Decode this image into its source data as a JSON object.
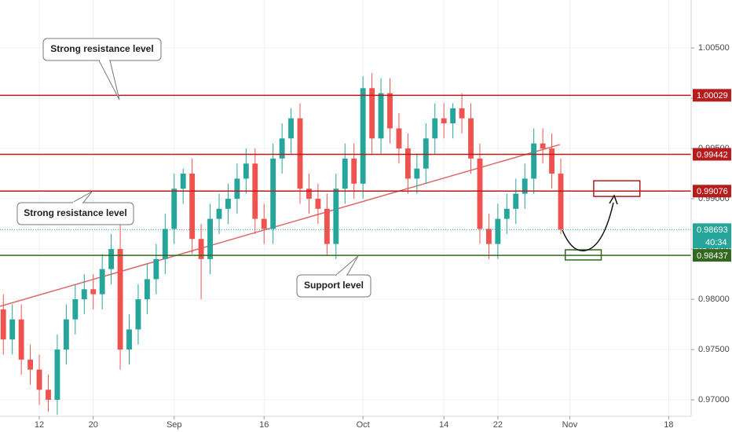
{
  "chart_data": {
    "type": "candlestick",
    "x": [
      -4,
      -3,
      -2,
      -1,
      0,
      1,
      2,
      3,
      4,
      5,
      6,
      7,
      8,
      9,
      10,
      11,
      12,
      13,
      14,
      15,
      16,
      17,
      18,
      19,
      20,
      21,
      22,
      23,
      24,
      25,
      26,
      27,
      28,
      29,
      30,
      31,
      32,
      33,
      34,
      35,
      36,
      37,
      38,
      39,
      40,
      41,
      42,
      43,
      44,
      45,
      46,
      47,
      48,
      49,
      50,
      51,
      52,
      53,
      54,
      55,
      56,
      57,
      58
    ],
    "open": [
      0.979,
      0.976,
      0.978,
      0.974,
      0.973,
      0.971,
      0.97,
      0.975,
      0.978,
      0.98,
      0.981,
      0.9805,
      0.983,
      0.985,
      0.975,
      0.977,
      0.98,
      0.982,
      0.984,
      0.987,
      0.991,
      0.9925,
      0.986,
      0.984,
      0.988,
      0.989,
      0.99,
      0.992,
      0.9935,
      0.988,
      0.987,
      0.994,
      0.996,
      0.998,
      0.991,
      0.99,
      0.989,
      0.9855,
      0.991,
      0.994,
      0.9915,
      1.001,
      0.996,
      1.0005,
      0.997,
      0.995,
      0.992,
      0.993,
      0.996,
      0.998,
      0.9975,
      0.999,
      0.998,
      0.994,
      0.987,
      0.9855,
      0.988,
      0.989,
      0.9905,
      0.992,
      0.9955,
      0.995,
      0.9925
    ],
    "high": [
      0.9805,
      0.9795,
      0.9795,
      0.9755,
      0.9745,
      0.9725,
      0.9765,
      0.9795,
      0.9815,
      0.9825,
      0.9825,
      0.9845,
      0.9865,
      0.9885,
      0.9785,
      0.9815,
      0.9835,
      0.9855,
      0.9885,
      0.9925,
      0.993,
      0.994,
      0.9875,
      0.9895,
      0.9905,
      0.9915,
      0.9935,
      0.995,
      0.995,
      0.9895,
      0.9955,
      0.9975,
      0.999,
      0.9995,
      0.9925,
      0.9915,
      0.9905,
      0.9925,
      0.9955,
      0.9955,
      1.0022,
      1.0025,
      1.002,
      1.002,
      0.9985,
      0.9965,
      0.9945,
      0.9975,
      0.9995,
      0.9995,
      0.9995,
      1.0005,
      0.9995,
      0.9955,
      0.9885,
      0.9895,
      0.9905,
      0.992,
      0.9935,
      0.997,
      0.997,
      0.9965,
      0.994
    ],
    "low": [
      0.9745,
      0.9745,
      0.9725,
      0.9715,
      0.9695,
      0.9688,
      0.9685,
      0.9735,
      0.9765,
      0.9785,
      0.979,
      0.979,
      0.9815,
      0.973,
      0.9735,
      0.9755,
      0.9785,
      0.9805,
      0.9825,
      0.9855,
      0.9895,
      0.9845,
      0.98,
      0.9825,
      0.9865,
      0.9875,
      0.9885,
      0.9905,
      0.9865,
      0.9855,
      0.9855,
      0.9925,
      0.9945,
      0.9895,
      0.9885,
      0.9875,
      0.9843,
      0.984,
      0.9895,
      0.99,
      0.99,
      0.9945,
      0.9945,
      0.9955,
      0.9935,
      0.9905,
      0.9905,
      0.9915,
      0.9945,
      0.996,
      0.996,
      0.9965,
      0.9925,
      0.9855,
      0.984,
      0.984,
      0.9865,
      0.9875,
      0.989,
      0.9905,
      0.9935,
      0.991,
      0.9865
    ],
    "close": [
      0.976,
      0.978,
      0.974,
      0.973,
      0.971,
      0.97,
      0.975,
      0.978,
      0.98,
      0.981,
      0.9805,
      0.983,
      0.985,
      0.975,
      0.977,
      0.98,
      0.982,
      0.984,
      0.987,
      0.991,
      0.9925,
      0.986,
      0.984,
      0.988,
      0.989,
      0.99,
      0.992,
      0.9935,
      0.988,
      0.987,
      0.994,
      0.996,
      0.998,
      0.991,
      0.99,
      0.989,
      0.9855,
      0.991,
      0.994,
      0.9915,
      1.001,
      0.996,
      1.0005,
      0.997,
      0.995,
      0.992,
      0.993,
      0.996,
      0.998,
      0.9975,
      0.999,
      0.998,
      0.994,
      0.987,
      0.9855,
      0.988,
      0.989,
      0.9905,
      0.992,
      0.9955,
      0.995,
      0.9925,
      0.98693
    ],
    "up_color": "#26a69a",
    "down_color": "#ef5350",
    "xlim": [
      -4.37,
      72.5
    ],
    "ylim": [
      0.96836,
      1.00977
    ],
    "xticks": [
      {
        "value": 0,
        "label": "12"
      },
      {
        "value": 6,
        "label": "20"
      },
      {
        "value": 15,
        "label": "Sep"
      },
      {
        "value": 25,
        "label": "16"
      },
      {
        "value": 36,
        "label": "Oct"
      },
      {
        "value": 45,
        "label": "14"
      },
      {
        "value": 51,
        "label": "22"
      },
      {
        "value": 59,
        "label": "Nov"
      },
      {
        "value": 70,
        "label": "18"
      }
    ],
    "yticks": [
      {
        "value": 0.97,
        "label": "0.97000"
      },
      {
        "value": 0.975,
        "label": "0.97500"
      },
      {
        "value": 0.98,
        "label": "0.98000"
      },
      {
        "value": 0.985,
        "label": "0.98500"
      },
      {
        "value": 0.99,
        "label": "0.99000"
      },
      {
        "value": 0.995,
        "label": "0.99500"
      },
      {
        "value": 1.0,
        "label": "1.00000"
      },
      {
        "value": 1.005,
        "label": "1.00500"
      }
    ],
    "grid": true,
    "levels": [
      {
        "value": 1.00029,
        "color": "#b71c1c"
      },
      {
        "value": 0.99442,
        "color": "#b71c1c"
      },
      {
        "value": 0.99076,
        "color": "#b71c1c"
      },
      {
        "value": 0.98437,
        "color": "#33691e"
      }
    ],
    "last_price": {
      "value": 0.98693,
      "color": "#26a69a",
      "countdown": "40:34"
    },
    "trendline": {
      "x": [
        -4.37,
        57.9
      ],
      "y": [
        0.9793,
        0.99539
      ],
      "color": "#e06666"
    },
    "boxes": [
      {
        "x": [
          61.66,
          66.8
        ],
        "y": [
          0.99179,
          0.99023
        ],
        "color": "#b71c1c"
      },
      {
        "x": [
          58.5,
          62.5
        ],
        "y": [
          0.98492,
          0.98391
        ],
        "color": "#33691e"
      }
    ],
    "annotations": [
      {
        "text": "Strong resistance level"
      },
      {
        "text": "Strong resistance level"
      },
      {
        "text": "Support level"
      }
    ]
  }
}
